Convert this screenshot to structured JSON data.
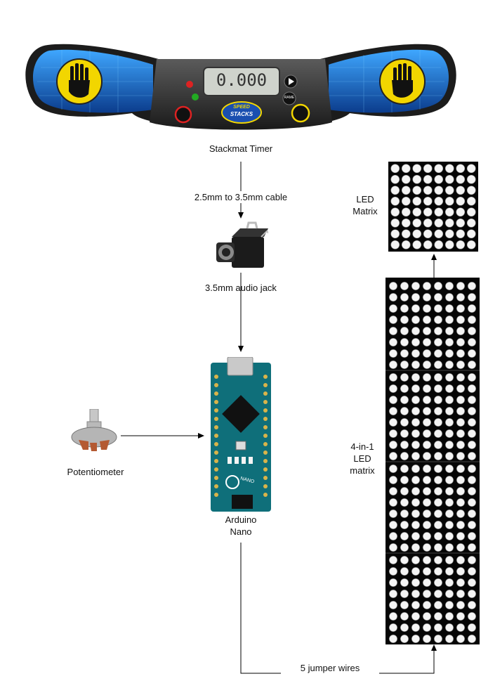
{
  "nodes": {
    "stackmat_timer": {
      "label": "Stackmat Timer",
      "display": "0.000",
      "logo_line1": "SPEED",
      "logo_line2": "STACKS",
      "button_right_top": "RAME",
      "palm_color": "#f2d600",
      "pad_color": "#1d6fd6"
    },
    "audio_jack": {
      "label": "3.5mm audio jack"
    },
    "arduino_nano": {
      "label_line1": "Arduino",
      "label_line2": "Nano",
      "chip_text": "NANO",
      "board_color": "#0f6f7a"
    },
    "potentiometer": {
      "label": "Potentiometer"
    },
    "led_matrix": {
      "label_line1": "LED",
      "label_line2": "Matrix",
      "rows": 8,
      "cols": 8
    },
    "led_matrix_4in1": {
      "label_line1": "4-in-1",
      "label_line2": "LED",
      "label_line3": "matrix",
      "modules": 4
    }
  },
  "edges": [
    {
      "from": "stackmat_timer",
      "to": "audio_jack",
      "label": "2.5mm to 3.5mm cable"
    },
    {
      "from": "audio_jack",
      "to": "arduino_nano",
      "label": ""
    },
    {
      "from": "potentiometer",
      "to": "arduino_nano",
      "label": ""
    },
    {
      "from": "arduino_nano",
      "to": "led_matrix_4in1",
      "label": "5 jumper wires"
    },
    {
      "from": "led_matrix_4in1",
      "to": "led_matrix",
      "label": ""
    }
  ]
}
